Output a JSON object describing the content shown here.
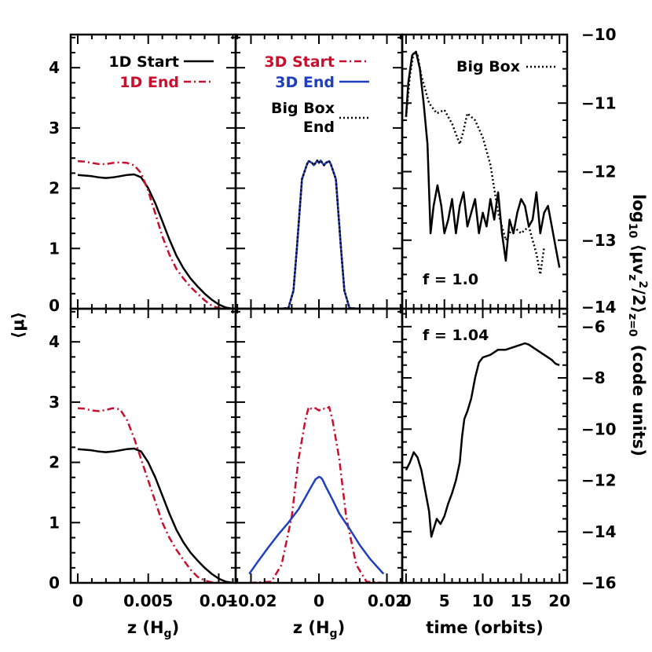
{
  "chart_data": [
    {
      "panel": "top-left",
      "type": "line",
      "xlim": [
        -0.0005,
        0.0112
      ],
      "ylim": [
        0,
        4.55
      ],
      "xticks": [],
      "yticks": [
        "0",
        "1",
        "2",
        "3",
        "4"
      ],
      "series": [
        {
          "name": "1D Start",
          "color": "#000000",
          "dash": "solid",
          "x": [
            0,
            0.0005,
            0.001,
            0.0015,
            0.002,
            0.0025,
            0.003,
            0.0035,
            0.004,
            0.0045,
            0.005,
            0.0055,
            0.006,
            0.0065,
            0.007,
            0.0075,
            0.008,
            0.0085,
            0.009,
            0.0095,
            0.01,
            0.0105,
            0.011
          ],
          "y": [
            2.22,
            2.21,
            2.2,
            2.18,
            2.17,
            2.18,
            2.2,
            2.22,
            2.23,
            2.18,
            2.0,
            1.75,
            1.45,
            1.15,
            0.88,
            0.67,
            0.5,
            0.37,
            0.25,
            0.15,
            0.07,
            0.02,
            0.0
          ]
        },
        {
          "name": "1D End",
          "color": "#c8102e",
          "dash": "dashdot",
          "x": [
            0,
            0.0005,
            0.001,
            0.0015,
            0.002,
            0.0025,
            0.003,
            0.0035,
            0.004,
            0.0045,
            0.005,
            0.0055,
            0.006,
            0.0065,
            0.007,
            0.0075,
            0.008,
            0.0085,
            0.009,
            0.0095,
            0.01,
            0.0105
          ],
          "y": [
            2.45,
            2.44,
            2.42,
            2.4,
            2.4,
            2.42,
            2.43,
            2.42,
            2.38,
            2.25,
            1.95,
            1.58,
            1.2,
            0.9,
            0.66,
            0.5,
            0.36,
            0.25,
            0.14,
            0.05,
            0.01,
            0.0
          ]
        }
      ]
    },
    {
      "panel": "top-middle",
      "type": "line",
      "xlim": [
        -0.0245,
        0.0245
      ],
      "ylim": [
        0,
        4.55
      ],
      "xticks": [],
      "yticks": [],
      "series": [
        {
          "name": "3D Start",
          "color": "#c8102e",
          "dash": "dashdot",
          "x": [
            -0.024,
            -0.016,
            -0.012,
            -0.009,
            -0.0075,
            -0.0065,
            -0.005,
            -0.0035,
            -0.003,
            -0.002,
            -0.0015,
            -0.001,
            -0.0005,
            0,
            0.0005,
            0.001,
            0.0015,
            0.002,
            0.003,
            0.0035,
            0.005,
            0.0065,
            0.0075,
            0.009,
            0.012,
            0.016,
            0.024
          ],
          "y": [
            0,
            0,
            0,
            0.01,
            0.3,
            1.0,
            2.15,
            2.4,
            2.45,
            2.42,
            2.38,
            2.42,
            2.46,
            2.42,
            2.46,
            2.42,
            2.38,
            2.42,
            2.45,
            2.4,
            2.15,
            1.0,
            0.3,
            0.01,
            0,
            0,
            0
          ]
        },
        {
          "name": "3D End",
          "color": "#1f3fbf",
          "dash": "solid",
          "x": [
            -0.024,
            -0.016,
            -0.012,
            -0.009,
            -0.0075,
            -0.0065,
            -0.005,
            -0.0035,
            -0.003,
            -0.002,
            -0.0015,
            -0.001,
            -0.0005,
            0,
            0.0005,
            0.001,
            0.0015,
            0.002,
            0.003,
            0.0035,
            0.005,
            0.0065,
            0.0075,
            0.009,
            0.012,
            0.016,
            0.024
          ],
          "y": [
            0,
            0,
            0,
            0.01,
            0.3,
            1.0,
            2.15,
            2.4,
            2.45,
            2.42,
            2.38,
            2.42,
            2.46,
            2.42,
            2.46,
            2.42,
            2.38,
            2.42,
            2.45,
            2.4,
            2.15,
            1.0,
            0.3,
            0.01,
            0,
            0,
            0
          ]
        },
        {
          "name": "Big Box End",
          "color": "#000000",
          "dash": "dotted",
          "x": [
            -0.024,
            -0.016,
            -0.012,
            -0.009,
            -0.0075,
            -0.0065,
            -0.005,
            -0.0035,
            -0.003,
            -0.002,
            -0.0015,
            -0.001,
            -0.0005,
            0,
            0.0005,
            0.001,
            0.0015,
            0.002,
            0.003,
            0.0035,
            0.005,
            0.0065,
            0.0075,
            0.009,
            0.012,
            0.016,
            0.024
          ],
          "y": [
            0,
            0,
            0,
            0.01,
            0.3,
            1.0,
            2.15,
            2.4,
            2.45,
            2.42,
            2.38,
            2.42,
            2.46,
            2.42,
            2.46,
            2.42,
            2.38,
            2.42,
            2.45,
            2.4,
            2.15,
            1.0,
            0.3,
            0.01,
            0,
            0,
            0
          ]
        }
      ]
    },
    {
      "panel": "top-right",
      "type": "line",
      "xlim": [
        -0.5,
        21.0
      ],
      "ylim": [
        -14,
        -10
      ],
      "xticks": [],
      "yticks": [
        "-10",
        "-11",
        "-12",
        "-13",
        "-14"
      ],
      "series": [
        {
          "name": "Big Box",
          "color": "#000000",
          "dash": "dotted",
          "x": [
            0,
            0.5,
            1,
            1.5,
            2,
            3,
            4,
            5,
            6,
            7,
            7.5,
            8,
            9,
            10,
            11,
            12,
            13,
            14,
            15,
            16,
            17,
            17.5,
            18
          ],
          "y": [
            -11.2,
            -10.6,
            -10.25,
            -10.3,
            -10.6,
            -11.0,
            -11.15,
            -11.1,
            -11.3,
            -11.6,
            -11.4,
            -11.15,
            -11.25,
            -11.5,
            -11.9,
            -12.6,
            -13.0,
            -12.8,
            -12.9,
            -12.8,
            -13.2,
            -13.5,
            -13.1
          ]
        },
        {
          "name": "",
          "color": "#000000",
          "dash": "solid",
          "x": [
            0,
            0.3,
            0.8,
            1.3,
            1.8,
            2.3,
            2.8,
            3.2,
            3.6,
            4.1,
            4.6,
            5.0,
            5.5,
            6.0,
            6.5,
            7.0,
            7.5,
            8.0,
            8.5,
            9.0,
            9.5,
            10.0,
            10.5,
            11.0,
            11.5,
            12.0,
            12.5,
            13.0,
            13.5,
            14.0,
            14.5,
            15.0,
            15.5,
            16.0,
            16.5,
            17.0,
            17.5,
            18.0,
            18.5,
            19.0,
            19.5,
            20.0
          ],
          "y": [
            -11.2,
            -10.7,
            -10.3,
            -10.25,
            -10.5,
            -11.0,
            -11.6,
            -12.9,
            -12.5,
            -12.2,
            -12.5,
            -12.9,
            -12.7,
            -12.4,
            -12.9,
            -12.5,
            -12.3,
            -12.8,
            -12.6,
            -12.4,
            -12.9,
            -12.6,
            -12.8,
            -12.4,
            -12.7,
            -12.3,
            -12.9,
            -13.3,
            -12.7,
            -12.9,
            -12.6,
            -12.4,
            -12.5,
            -12.8,
            -12.7,
            -12.3,
            -12.9,
            -12.6,
            -12.5,
            -12.8,
            -13.1,
            -13.4
          ]
        }
      ]
    },
    {
      "panel": "bottom-left",
      "type": "line",
      "xlim": [
        -0.0005,
        0.0112
      ],
      "ylim": [
        0,
        4.55
      ],
      "xticks": [
        "0",
        "0.005",
        "0.01"
      ],
      "yticks": [
        "0",
        "1",
        "2",
        "3",
        "4"
      ],
      "xlabel": "z (H",
      "xlabel_sub": "g",
      "xlabel_close": ")",
      "series": [
        {
          "name": "1D Start",
          "color": "#000000",
          "dash": "solid",
          "x": [
            0,
            0.0005,
            0.001,
            0.0015,
            0.002,
            0.0025,
            0.003,
            0.0035,
            0.004,
            0.0045,
            0.005,
            0.0055,
            0.006,
            0.0065,
            0.007,
            0.0075,
            0.008,
            0.0085,
            0.009,
            0.0095,
            0.01,
            0.0105,
            0.011
          ],
          "y": [
            2.22,
            2.21,
            2.2,
            2.18,
            2.17,
            2.18,
            2.2,
            2.22,
            2.23,
            2.18,
            2.0,
            1.75,
            1.45,
            1.15,
            0.88,
            0.67,
            0.5,
            0.37,
            0.25,
            0.15,
            0.07,
            0.02,
            0.0
          ]
        },
        {
          "name": "1D End",
          "color": "#c8102e",
          "dash": "dashdot",
          "x": [
            0,
            0.0005,
            0.001,
            0.0015,
            0.002,
            0.0025,
            0.003,
            0.0035,
            0.004,
            0.0045,
            0.005,
            0.0055,
            0.006,
            0.0065,
            0.007,
            0.0075,
            0.008,
            0.0085,
            0.009,
            0.0095,
            0.01
          ],
          "y": [
            2.9,
            2.89,
            2.86,
            2.85,
            2.87,
            2.9,
            2.88,
            2.7,
            2.4,
            2.05,
            1.7,
            1.35,
            1.0,
            0.75,
            0.55,
            0.38,
            0.22,
            0.1,
            0.04,
            0.01,
            0.0
          ]
        }
      ]
    },
    {
      "panel": "bottom-middle",
      "type": "line",
      "xlim": [
        -0.0245,
        0.0245
      ],
      "ylim": [
        0,
        4.55
      ],
      "xticks": [
        "-0.02",
        "0",
        "0.02"
      ],
      "yticks": [],
      "xlabel": "z (H",
      "xlabel_sub": "g",
      "xlabel_close": ")",
      "series": [
        {
          "name": "3D Start",
          "color": "#c8102e",
          "dash": "dashdot",
          "x": [
            -0.0205,
            -0.014,
            -0.011,
            -0.008,
            -0.006,
            -0.004,
            -0.003,
            -0.002,
            -0.001,
            0,
            0.001,
            0.002,
            0.003,
            0.004,
            0.006,
            0.008,
            0.011,
            0.014,
            0.019
          ],
          "y": [
            0.0,
            0.02,
            0.3,
            1.1,
            2.05,
            2.7,
            2.92,
            2.88,
            2.9,
            2.86,
            2.9,
            2.88,
            2.92,
            2.7,
            2.05,
            1.1,
            0.3,
            0.02,
            0.0
          ]
        },
        {
          "name": "3D End",
          "color": "#1f3fbf",
          "dash": "solid",
          "x": [
            -0.0205,
            -0.018,
            -0.015,
            -0.012,
            -0.009,
            -0.006,
            -0.004,
            -0.002,
            -0.001,
            0,
            0.0005,
            0.001,
            0.002,
            0.004,
            0.006,
            0.009,
            0.012,
            0.015,
            0.019
          ],
          "y": [
            0.15,
            0.35,
            0.58,
            0.8,
            1.0,
            1.22,
            1.42,
            1.62,
            1.72,
            1.76,
            1.75,
            1.72,
            1.6,
            1.38,
            1.15,
            0.9,
            0.63,
            0.4,
            0.15
          ]
        }
      ]
    },
    {
      "panel": "bottom-right",
      "type": "line",
      "xlim": [
        -0.5,
        21.0
      ],
      "ylim": [
        -16,
        -5.3
      ],
      "xticks": [
        "0",
        "5",
        "10",
        "15",
        "20"
      ],
      "yticks": [
        "-6",
        "-8",
        "-10",
        "-12",
        "-14",
        "-16"
      ],
      "xlabel": "time (orbits)",
      "series": [
        {
          "name": "",
          "color": "#000000",
          "dash": "solid",
          "x": [
            0,
            0.5,
            1,
            1.5,
            2,
            2.5,
            3,
            3.3,
            3.6,
            4,
            4.5,
            5,
            5.5,
            6,
            6.5,
            7,
            7.3,
            7.6,
            8,
            8.5,
            9,
            9.5,
            10,
            11,
            12,
            13,
            14,
            15,
            15.5,
            16,
            17,
            18,
            19,
            19.5,
            20
          ],
          "y": [
            -11.6,
            -11.3,
            -10.9,
            -11.1,
            -11.6,
            -12.4,
            -13.2,
            -14.2,
            -13.9,
            -13.5,
            -13.7,
            -13.4,
            -12.9,
            -12.5,
            -12.0,
            -11.3,
            -10.3,
            -9.6,
            -9.3,
            -8.8,
            -8.0,
            -7.4,
            -7.2,
            -7.1,
            -6.9,
            -6.9,
            -6.8,
            -6.7,
            -6.65,
            -6.7,
            -6.9,
            -7.1,
            -7.3,
            -7.45,
            -7.5
          ]
        }
      ]
    }
  ],
  "shared_labels": {
    "ylabel_left": "⟨μ⟩",
    "ylabel_right_top_pre": "log",
    "ylabel_right_top_sub": "10",
    "ylabel_right_top_main": " ⟨μv",
    "ylabel_right_top_sub2": "z",
    "ylabel_right_top_sup": "2",
    "ylabel_right_top_tail": "/2⟩",
    "ylabel_right_top_sub3": "z=0",
    "ylabel_right_bottom": "(code units)"
  },
  "legends": {
    "top_left": [
      "1D Start",
      "1D End"
    ],
    "top_middle": [
      "3D Start",
      "3D End",
      "Big Box",
      "End"
    ],
    "top_right": [
      "Big Box"
    ]
  },
  "annotations": {
    "top_right": "f = 1.0",
    "bottom_right": "f = 1.04"
  }
}
